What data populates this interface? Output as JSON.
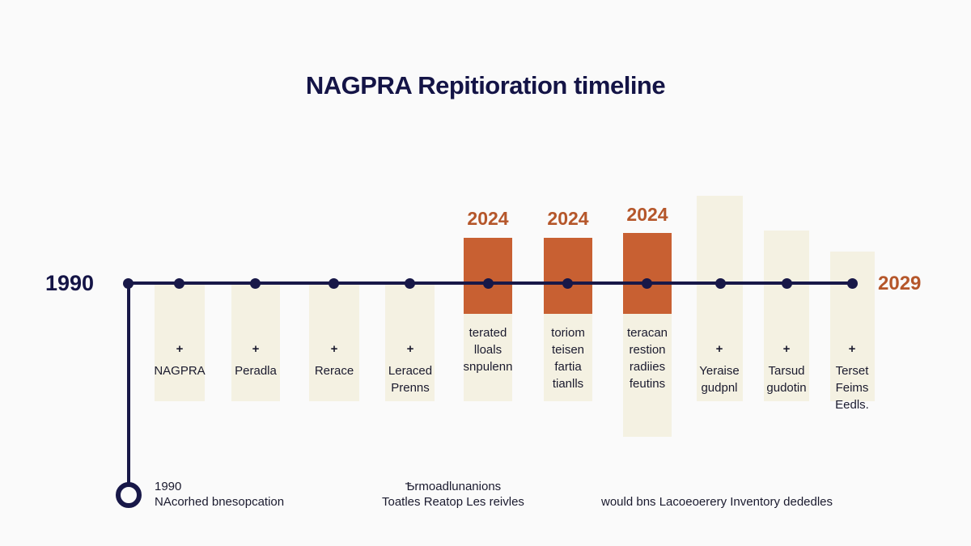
{
  "title": "NAGPRA Repitioration timeline",
  "axis": {
    "start_label": "1990",
    "end_label": "2029"
  },
  "colors": {
    "navy": "#181848",
    "accent": "#c86032",
    "accent_text": "#b5562a",
    "column_fill": "#f4f1e2"
  },
  "columns": [
    {
      "plus": "+",
      "lines": [
        "NAGPRA"
      ]
    },
    {
      "plus": "+",
      "lines": [
        "Peradla"
      ]
    },
    {
      "plus": "+",
      "lines": [
        "Rerace"
      ]
    },
    {
      "plus": "+",
      "lines": [
        "Leraced",
        "Prenns"
      ]
    },
    {
      "year": "2024",
      "lines": [
        "terated",
        "lloals",
        "snpulenn"
      ]
    },
    {
      "year": "2024",
      "lines": [
        "toriom",
        "teisen",
        "fartia",
        "tianlls"
      ]
    },
    {
      "year": "2024",
      "lines": [
        "teracan",
        "restion",
        "radiies",
        "feutins"
      ]
    },
    {
      "plus": "+",
      "lines": [
        "Yeraise",
        "gudpnl"
      ]
    },
    {
      "plus": "+",
      "lines": [
        "Tarsud",
        "gudotin"
      ]
    },
    {
      "plus": "+",
      "lines": [
        "Terset",
        "Feims",
        "Eedls."
      ]
    }
  ],
  "bottom": {
    "left_year": "1990",
    "left_text": "NAcorhed bnesopcation",
    "middle_line1": "Ѣrmoadlunanions",
    "middle_line2": "Toatles Reatop Les reivles",
    "right_text": "would bns Lacoeoerery Inventory dededles"
  }
}
